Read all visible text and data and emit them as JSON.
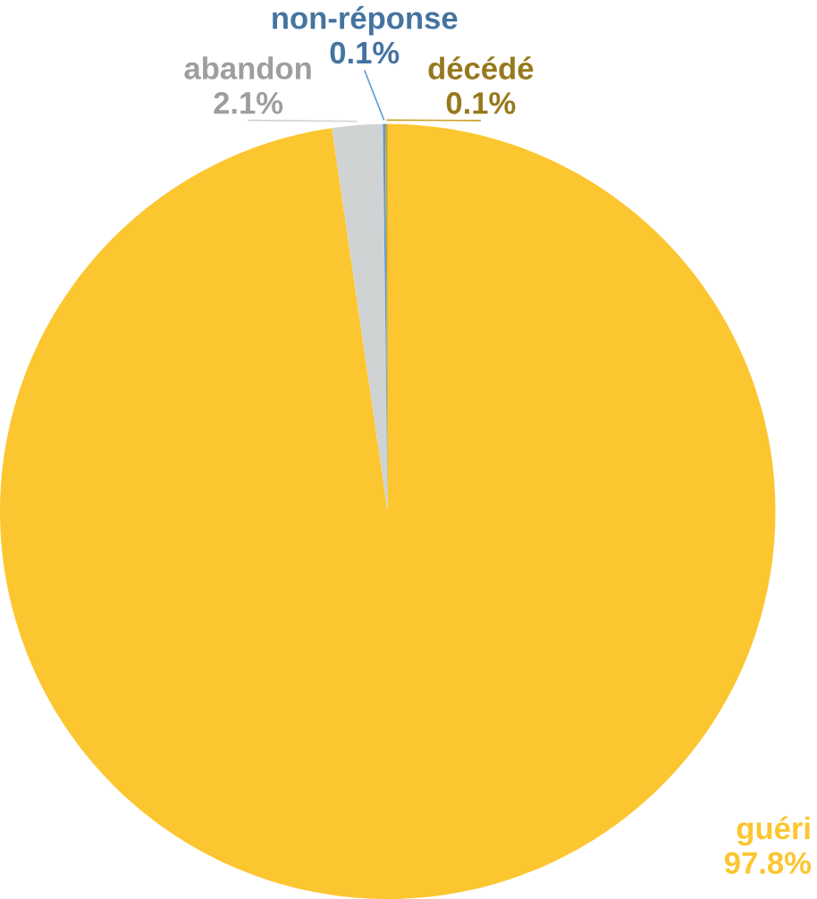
{
  "chart_data": {
    "type": "pie",
    "categories": [
      "guéri",
      "abandon",
      "non-réponse",
      "décédé"
    ],
    "values": [
      97.8,
      2.1,
      0.1,
      0.1
    ],
    "value_labels": [
      "97.8%",
      "2.1%",
      "0.1%",
      "0.1%"
    ],
    "colors": [
      "#fcc630",
      "#d0d3d4",
      "#5b9bd5",
      "#c9a227"
    ]
  }
}
